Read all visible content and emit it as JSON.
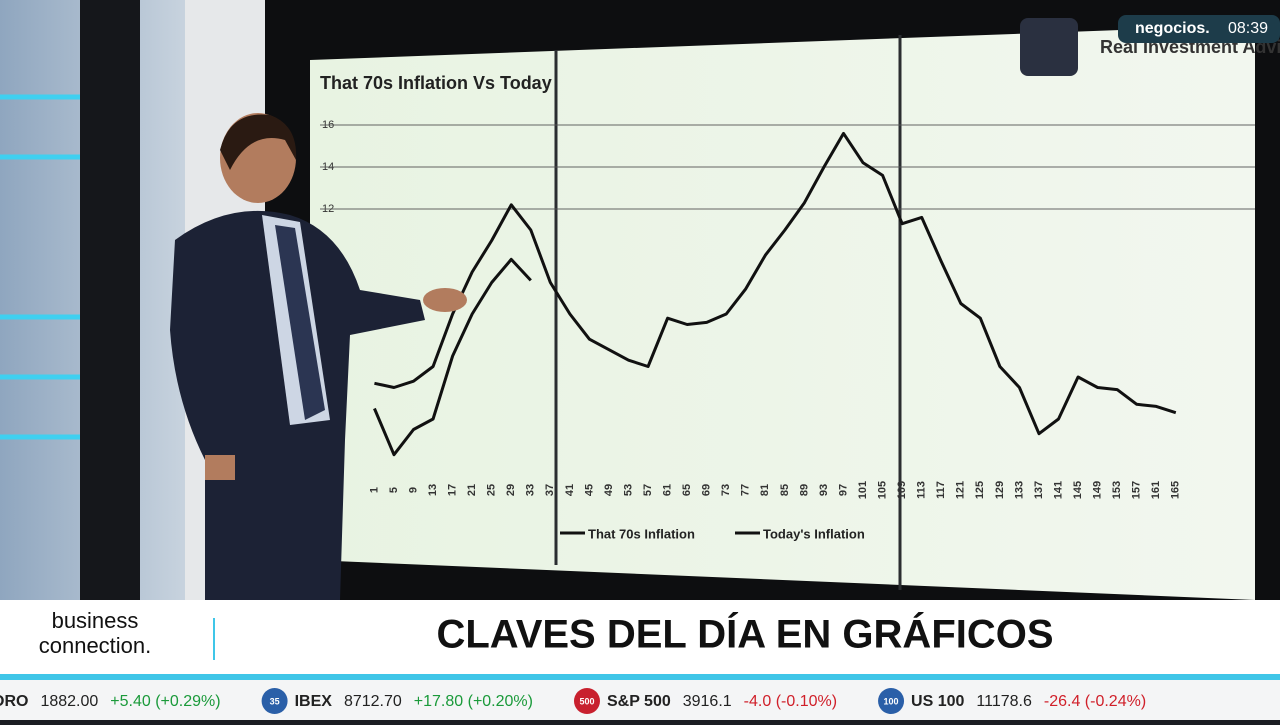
{
  "chart_data": {
    "type": "line",
    "title": "That 70s Inflation Vs Today",
    "x": [
      1,
      5,
      9,
      13,
      17,
      21,
      25,
      29,
      33,
      37,
      41,
      45,
      49,
      53,
      57,
      61,
      65,
      69,
      73,
      77,
      81,
      85,
      89,
      93,
      97,
      101,
      105,
      109,
      113,
      117,
      121,
      125,
      129,
      133,
      137,
      141,
      145,
      149,
      153,
      157,
      161,
      165
    ],
    "xlim": [
      -4,
      172
    ],
    "ylim": [
      0,
      17
    ],
    "yticks": [
      12,
      14,
      16
    ],
    "grid": true,
    "series": [
      {
        "name": "That 70s Inflation",
        "color": "#111111",
        "values": [
          3.7,
          3.5,
          3.8,
          4.5,
          7,
          9,
          10.5,
          12.2,
          11,
          8.5,
          7,
          5.8,
          5.3,
          4.8,
          4.5,
          6.8,
          6.5,
          6.6,
          7,
          8.2,
          9.8,
          11,
          12.3,
          14,
          15.6,
          14.2,
          13.6,
          11.3,
          11.6,
          9.5,
          7.5,
          6.8,
          4.5,
          3.5,
          1.3,
          2,
          4,
          3.5,
          3.4,
          2.7,
          2.6,
          2.3
        ]
      },
      {
        "name": "Today's Inflation",
        "color": "#111111",
        "values": [
          2.5,
          0.3,
          1.5,
          2,
          5,
          7,
          8.5,
          9.6,
          8.6,
          null,
          null,
          null,
          null,
          null,
          null,
          null,
          null,
          null,
          null,
          null,
          null,
          null,
          null,
          null,
          null,
          null,
          null,
          null,
          null,
          null,
          null,
          null,
          null,
          null,
          null,
          null,
          null,
          null,
          null,
          null,
          null,
          null
        ]
      }
    ]
  },
  "overlay": {
    "logo": "Real Investment Advice",
    "channel": "negocios.",
    "time": "08:39",
    "brand": "business connection.",
    "headline": "CLAVES DEL DÍA EN GRÁFICOS"
  },
  "ticker": [
    {
      "badge": "",
      "name": "ORO",
      "price": "1882.00",
      "change": "+5.40 (+0.29%)",
      "color": "#1a9a3a"
    },
    {
      "badge": "35",
      "name": "IBEX",
      "price": "8712.70",
      "change": "+17.80 (+0.20%)",
      "color": "#1a9a3a"
    },
    {
      "badge": "500",
      "name": "S&P 500",
      "price": "3916.1",
      "change": "-4.0 (-0.10%)",
      "color": "#d0202a"
    },
    {
      "badge": "100",
      "name": "US 100",
      "price": "11178.6",
      "change": "-26.4 (-0.24%)",
      "color": "#d0202a"
    }
  ]
}
